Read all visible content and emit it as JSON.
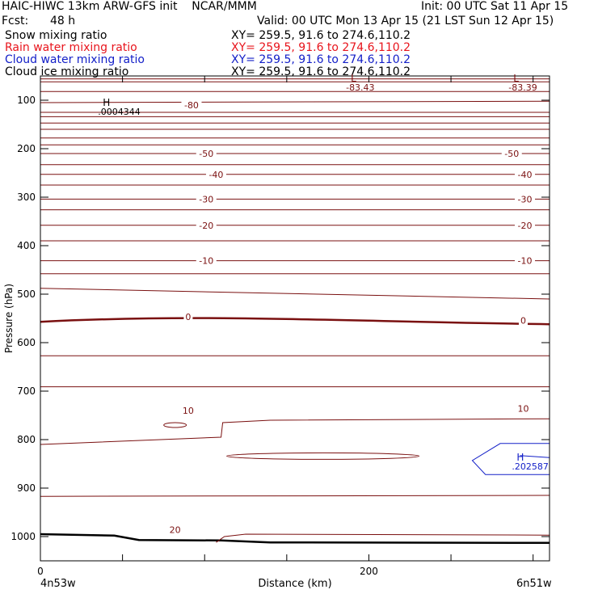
{
  "header": {
    "title": "HAIC-HIWC 13km ARW-GFS init    NCAR/MMM",
    "init": "Init: 00 UTC Sat 11 Apr 15",
    "fcst_label": "Fcst:",
    "fcst_value": "48 h",
    "valid": "Valid: 00 UTC Mon 13 Apr 15 (21 LST Sun 12 Apr 15)"
  },
  "fields": [
    {
      "label": "Snow mixing ratio",
      "xy": "XY= 259.5, 91.6 to 274.6,110.2",
      "color": "#000000"
    },
    {
      "label": "Rain water mixing ratio",
      "xy": "XY= 259.5, 91.6 to 274.6,110.2",
      "color": "#e8141c"
    },
    {
      "label": "Cloud water mixing ratio",
      "xy": "XY= 259.5, 91.6 to 274.6,110.2",
      "color": "#1420c8"
    },
    {
      "label": "Cloud ice mixing ratio",
      "xy": "XY= 259.5, 91.6 to 274.6,110.2",
      "color": "#000000"
    }
  ],
  "chart_data": {
    "type": "line",
    "xlabel": "Distance (km)",
    "ylabel": "Pressure (hPa)",
    "x_ticks": [
      "0",
      "200"
    ],
    "y_ticks": [
      "100",
      "200",
      "300",
      "400",
      "500",
      "600",
      "700",
      "800",
      "900",
      "1000"
    ],
    "xlim": [
      0,
      310
    ],
    "ylim": [
      50,
      1050
    ],
    "endpoint_left": "4n53w",
    "endpoint_right": "6n51w",
    "isotherm_color": "#7a1010",
    "cloud_color": "#1420c8",
    "isotherm_labels": [
      {
        "text": "-80",
        "x": 92,
        "p": 110
      },
      {
        "text": "-50",
        "x": 101,
        "p": 210
      },
      {
        "text": "-50",
        "x": 287,
        "p": 210
      },
      {
        "text": "-40",
        "x": 107,
        "p": 253
      },
      {
        "text": "-40",
        "x": 295,
        "p": 253
      },
      {
        "text": "-30",
        "x": 101,
        "p": 304
      },
      {
        "text": "-30",
        "x": 295,
        "p": 304
      },
      {
        "text": "-20",
        "x": 101,
        "p": 358
      },
      {
        "text": "-20",
        "x": 295,
        "p": 358
      },
      {
        "text": "-10",
        "x": 101,
        "p": 431
      },
      {
        "text": "-10",
        "x": 295,
        "p": 431
      },
      {
        "text": "0",
        "x": 90,
        "p": 547
      },
      {
        "text": "0",
        "x": 294,
        "p": 554
      },
      {
        "text": "10",
        "x": 90,
        "p": 740
      },
      {
        "text": "10",
        "x": 294,
        "p": 736
      },
      {
        "text": "20",
        "x": 82,
        "p": 986
      }
    ],
    "extrema": [
      {
        "type": "H",
        "value": ".0004344",
        "x": 38,
        "p": 112,
        "color": "#000000"
      },
      {
        "type": "L",
        "value": "-83.43",
        "x": 189,
        "p": 62,
        "color": "#7a1010"
      },
      {
        "type": "L",
        "value": "-83.39",
        "x": 288,
        "p": 62,
        "color": "#7a1010"
      },
      {
        "type": "H",
        "value": ".202587",
        "x": 290,
        "p": 843,
        "color": "#1420c8"
      }
    ]
  }
}
